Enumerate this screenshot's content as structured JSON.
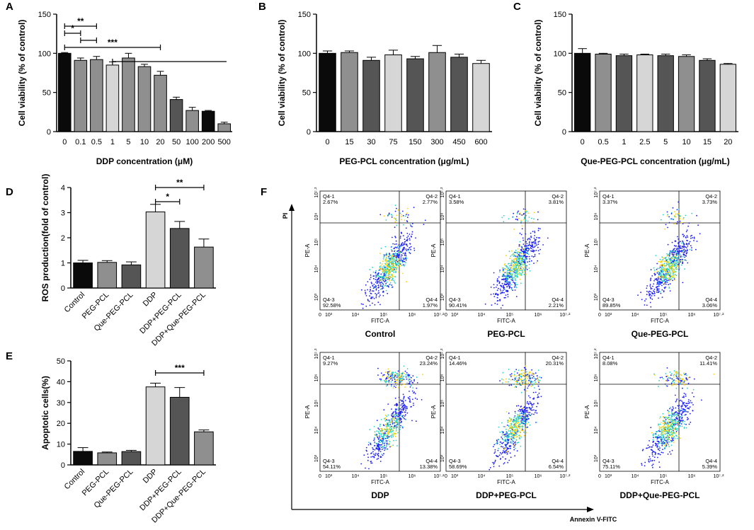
{
  "colors": {
    "black": "#0a0a0a",
    "dark": "#555555",
    "mid": "#8f8f8f",
    "light": "#d6d6d6",
    "flow_low": "#1a1aff",
    "flow_mid": "#27d3c4",
    "flow_high": "#ffd200"
  },
  "chart_data": [
    {
      "id": "A",
      "type": "bar",
      "ylabel": "Cell viability (% of control)",
      "xlabel": "DDP concentration (μM)",
      "ylim": [
        0,
        150
      ],
      "yticks": [
        0,
        50,
        100,
        150
      ],
      "categories": [
        "0",
        "0.1",
        "0.5",
        "1",
        "5",
        "10",
        "20",
        "50",
        "100",
        "200",
        "500"
      ],
      "values": [
        100,
        91,
        92,
        85,
        94,
        83,
        72,
        41,
        27,
        26,
        10
      ],
      "errors": [
        1,
        3,
        4,
        4,
        6,
        3,
        5,
        3,
        4,
        1,
        2
      ],
      "shades": [
        "black",
        "mid",
        "mid",
        "light",
        "mid",
        "mid",
        "mid",
        "dark",
        "mid",
        "black",
        "mid"
      ],
      "significance": [
        {
          "label": "**",
          "from": 0,
          "to": 2
        },
        {
          "label": "*",
          "from": 0,
          "to": 1
        },
        {
          "label": "",
          "from": 1,
          "to": 2
        },
        {
          "label": "***",
          "from": 0,
          "to": 6
        },
        {
          "label": "",
          "from": 3,
          "to": 7
        }
      ]
    },
    {
      "id": "B",
      "type": "bar",
      "ylabel": "Cell viability (% of control)",
      "xlabel": "PEG-PCL concentration (μg/mL)",
      "ylim": [
        0,
        150
      ],
      "yticks": [
        0,
        50,
        100,
        150
      ],
      "categories": [
        "0",
        "15",
        "30",
        "75",
        "150",
        "300",
        "450",
        "600"
      ],
      "values": [
        100,
        101,
        91,
        98,
        93,
        101,
        95,
        87
      ],
      "errors": [
        3,
        2,
        4,
        6,
        3,
        9,
        4,
        4
      ],
      "shades": [
        "black",
        "mid",
        "dark",
        "light",
        "dark",
        "mid",
        "dark",
        "light"
      ],
      "significance": []
    },
    {
      "id": "C",
      "type": "bar",
      "ylabel": "Cell viability (% of control)",
      "xlabel": "Que-PEG-PCL concentration (μg/mL)",
      "ylim": [
        0,
        150
      ],
      "yticks": [
        0,
        50,
        100,
        150
      ],
      "categories": [
        "0",
        "0.5",
        "1",
        "2.5",
        "5",
        "10",
        "15",
        "20"
      ],
      "values": [
        100,
        99,
        97,
        98,
        97,
        96,
        91,
        86
      ],
      "errors": [
        6,
        1,
        2,
        1,
        2,
        2,
        2,
        1
      ],
      "shades": [
        "black",
        "mid",
        "dark",
        "light",
        "dark",
        "mid",
        "dark",
        "light"
      ],
      "significance": []
    },
    {
      "id": "D",
      "type": "bar",
      "ylabel": "ROS production(fold of control)",
      "xlabel": "",
      "ylim": [
        0,
        4
      ],
      "yticks": [
        0,
        1,
        2,
        3,
        4
      ],
      "categories": [
        "Control",
        "PEG-PCL",
        "Que-PEG-PCL",
        "DDP",
        "DDP+PEG-PCL",
        "DDP+Que-PEG-PCL"
      ],
      "values": [
        1.0,
        1.02,
        0.92,
        3.03,
        2.37,
        1.63
      ],
      "errors": [
        0.1,
        0.07,
        0.12,
        0.3,
        0.28,
        0.32
      ],
      "shades": [
        "black",
        "mid",
        "dark",
        "light",
        "dark",
        "mid"
      ],
      "significance": [
        {
          "label": "*",
          "from": 3,
          "to": 4
        },
        {
          "label": "**",
          "from": 3,
          "to": 5
        }
      ]
    },
    {
      "id": "E",
      "type": "bar",
      "ylabel": "Apoptotic cells(%)",
      "xlabel": "",
      "ylim": [
        0,
        50
      ],
      "yticks": [
        0,
        10,
        20,
        30,
        40,
        50
      ],
      "categories": [
        "Control",
        "PEG-PCL",
        "Que-PEG-PCL",
        "DDP",
        "DDP+PEG-PCL",
        "DDP+Que-PEG-PCL"
      ],
      "values": [
        6.5,
        5.8,
        6.4,
        37.5,
        32.5,
        15.9
      ],
      "errors": [
        1.8,
        0.4,
        0.6,
        1.8,
        4.7,
        0.9
      ],
      "shades": [
        "black",
        "mid",
        "dark",
        "light",
        "dark",
        "mid"
      ],
      "significance": [
        {
          "label": "***",
          "from": 3,
          "to": 5
        }
      ]
    },
    {
      "id": "F",
      "type": "scatter",
      "x_axis_title": "Annexin V-FITC",
      "y_axis_title": "PI",
      "plot_xlabel": "FITC-A",
      "plot_ylabel": "PE-A",
      "x_ticks": [
        "0",
        "10³",
        "10⁴",
        "10⁵",
        "10⁶",
        "10⁷·²"
      ],
      "y_ticks": [
        "10³",
        "10⁴",
        "10⁵",
        "10⁶",
        "10⁷·²"
      ],
      "plots": [
        {
          "name": "Control",
          "q1": "Q4-1\n2.67%",
          "q2": "Q4-2\n2.77%",
          "q3": "Q4-3\n92.58%",
          "q4": "Q4-4\n1.97%"
        },
        {
          "name": "PEG-PCL",
          "q1": "Q4-1\n3.58%",
          "q2": "Q4-2\n3.81%",
          "q3": "Q4-3\n90.41%",
          "q4": "Q4-4\n2.21%"
        },
        {
          "name": "Que-PEG-PCL",
          "q1": "Q4-1\n3.37%",
          "q2": "Q4-2\n3.73%",
          "q3": "Q4-3\n89.85%",
          "q4": "Q4-4\n3.06%"
        },
        {
          "name": "DDP",
          "q1": "Q4-1\n9.27%",
          "q2": "Q4-2\n23.24%",
          "q3": "Q4-3\n54.11%",
          "q4": "Q4-4\n13.38%"
        },
        {
          "name": "DDP+PEG-PCL",
          "q1": "Q4-1\n14.46%",
          "q2": "Q4-2\n20.31%",
          "q3": "Q4-3\n58.69%",
          "q4": "Q4-4\n6.54%"
        },
        {
          "name": "DDP+Que-PEG-PCL",
          "q1": "Q4-1\n8.08%",
          "q2": "Q4-2\n11.41%",
          "q3": "Q4-3\n75.11%",
          "q4": "Q4-4\n5.39%"
        }
      ]
    }
  ]
}
